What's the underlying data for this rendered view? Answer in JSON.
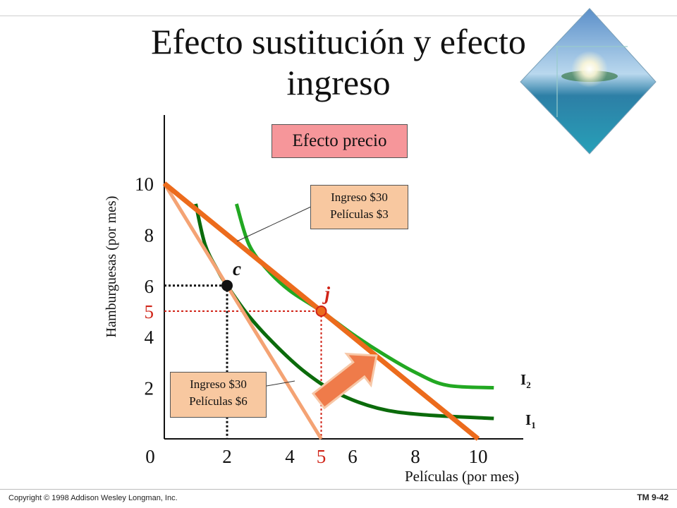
{
  "slide": {
    "title_line1": "Efecto sustitución y efecto",
    "title_line2": "ingreso",
    "copyright": "Copyright © 1998 Addison Wesley Longman, Inc.",
    "slide_id": "TM 9-42"
  },
  "labels": {
    "price_effect": "Efecto precio",
    "budget_top_line1": "Ingreso $30",
    "budget_top_line2": "Películas $3",
    "budget_bottom_line1": "Ingreso $30",
    "budget_bottom_line2": "Películas $6"
  },
  "colors": {
    "budget_line_new": "#ec6b1c",
    "budget_line_old": "#f4a374",
    "indifference_I1": "#0b6b0b",
    "indifference_I2": "#22a822",
    "price_effect_box": "#f6969a",
    "note_box": "#f8c8a0",
    "arrow": "#ef7b4a",
    "highlight_red": "#d02418"
  },
  "chart_data": {
    "type": "line",
    "xlabel": "Películas (por mes)",
    "ylabel": "Hamburguesas (por mes)",
    "xlim": [
      0,
      11
    ],
    "ylim": [
      0,
      12
    ],
    "x_ticks": [
      {
        "value": 0,
        "label": "0"
      },
      {
        "value": 2,
        "label": "2"
      },
      {
        "value": 4,
        "label": "4"
      },
      {
        "value": 5,
        "label": "5",
        "highlight": true
      },
      {
        "value": 6,
        "label": "6"
      },
      {
        "value": 8,
        "label": "8"
      },
      {
        "value": 10,
        "label": "10"
      }
    ],
    "y_ticks": [
      {
        "value": 2,
        "label": "2"
      },
      {
        "value": 4,
        "label": "4"
      },
      {
        "value": 5,
        "label": "5",
        "highlight": true
      },
      {
        "value": 6,
        "label": "6"
      },
      {
        "value": 8,
        "label": "8"
      },
      {
        "value": 10,
        "label": "10"
      }
    ],
    "budget_lines": [
      {
        "id": "old",
        "points": [
          [
            0,
            10
          ],
          [
            5,
            0
          ]
        ]
      },
      {
        "id": "new",
        "points": [
          [
            0,
            10
          ],
          [
            10,
            0
          ]
        ]
      }
    ],
    "indifference_curves": [
      {
        "name": "I1",
        "points": [
          [
            1.0,
            9.2
          ],
          [
            1.3,
            7.6
          ],
          [
            1.7,
            6.6
          ],
          [
            2,
            6
          ],
          [
            2.7,
            4.8
          ],
          [
            3.6,
            3.6
          ],
          [
            4.5,
            2.6
          ],
          [
            5.5,
            1.8
          ],
          [
            6.8,
            1.2
          ],
          [
            8.2,
            0.95
          ],
          [
            10.5,
            0.8
          ]
        ]
      },
      {
        "name": "I2",
        "points": [
          [
            2.3,
            9.2
          ],
          [
            2.7,
            7.6
          ],
          [
            3.3,
            6.6
          ],
          [
            4.0,
            5.8
          ],
          [
            5,
            5
          ],
          [
            6,
            4.1
          ],
          [
            7.0,
            3.3
          ],
          [
            8.0,
            2.6
          ],
          [
            9.0,
            2.1
          ],
          [
            10.5,
            2.0
          ]
        ]
      }
    ],
    "points": [
      {
        "label": "c",
        "x": 2,
        "y": 6
      },
      {
        "label": "j",
        "x": 5,
        "y": 5
      }
    ]
  }
}
